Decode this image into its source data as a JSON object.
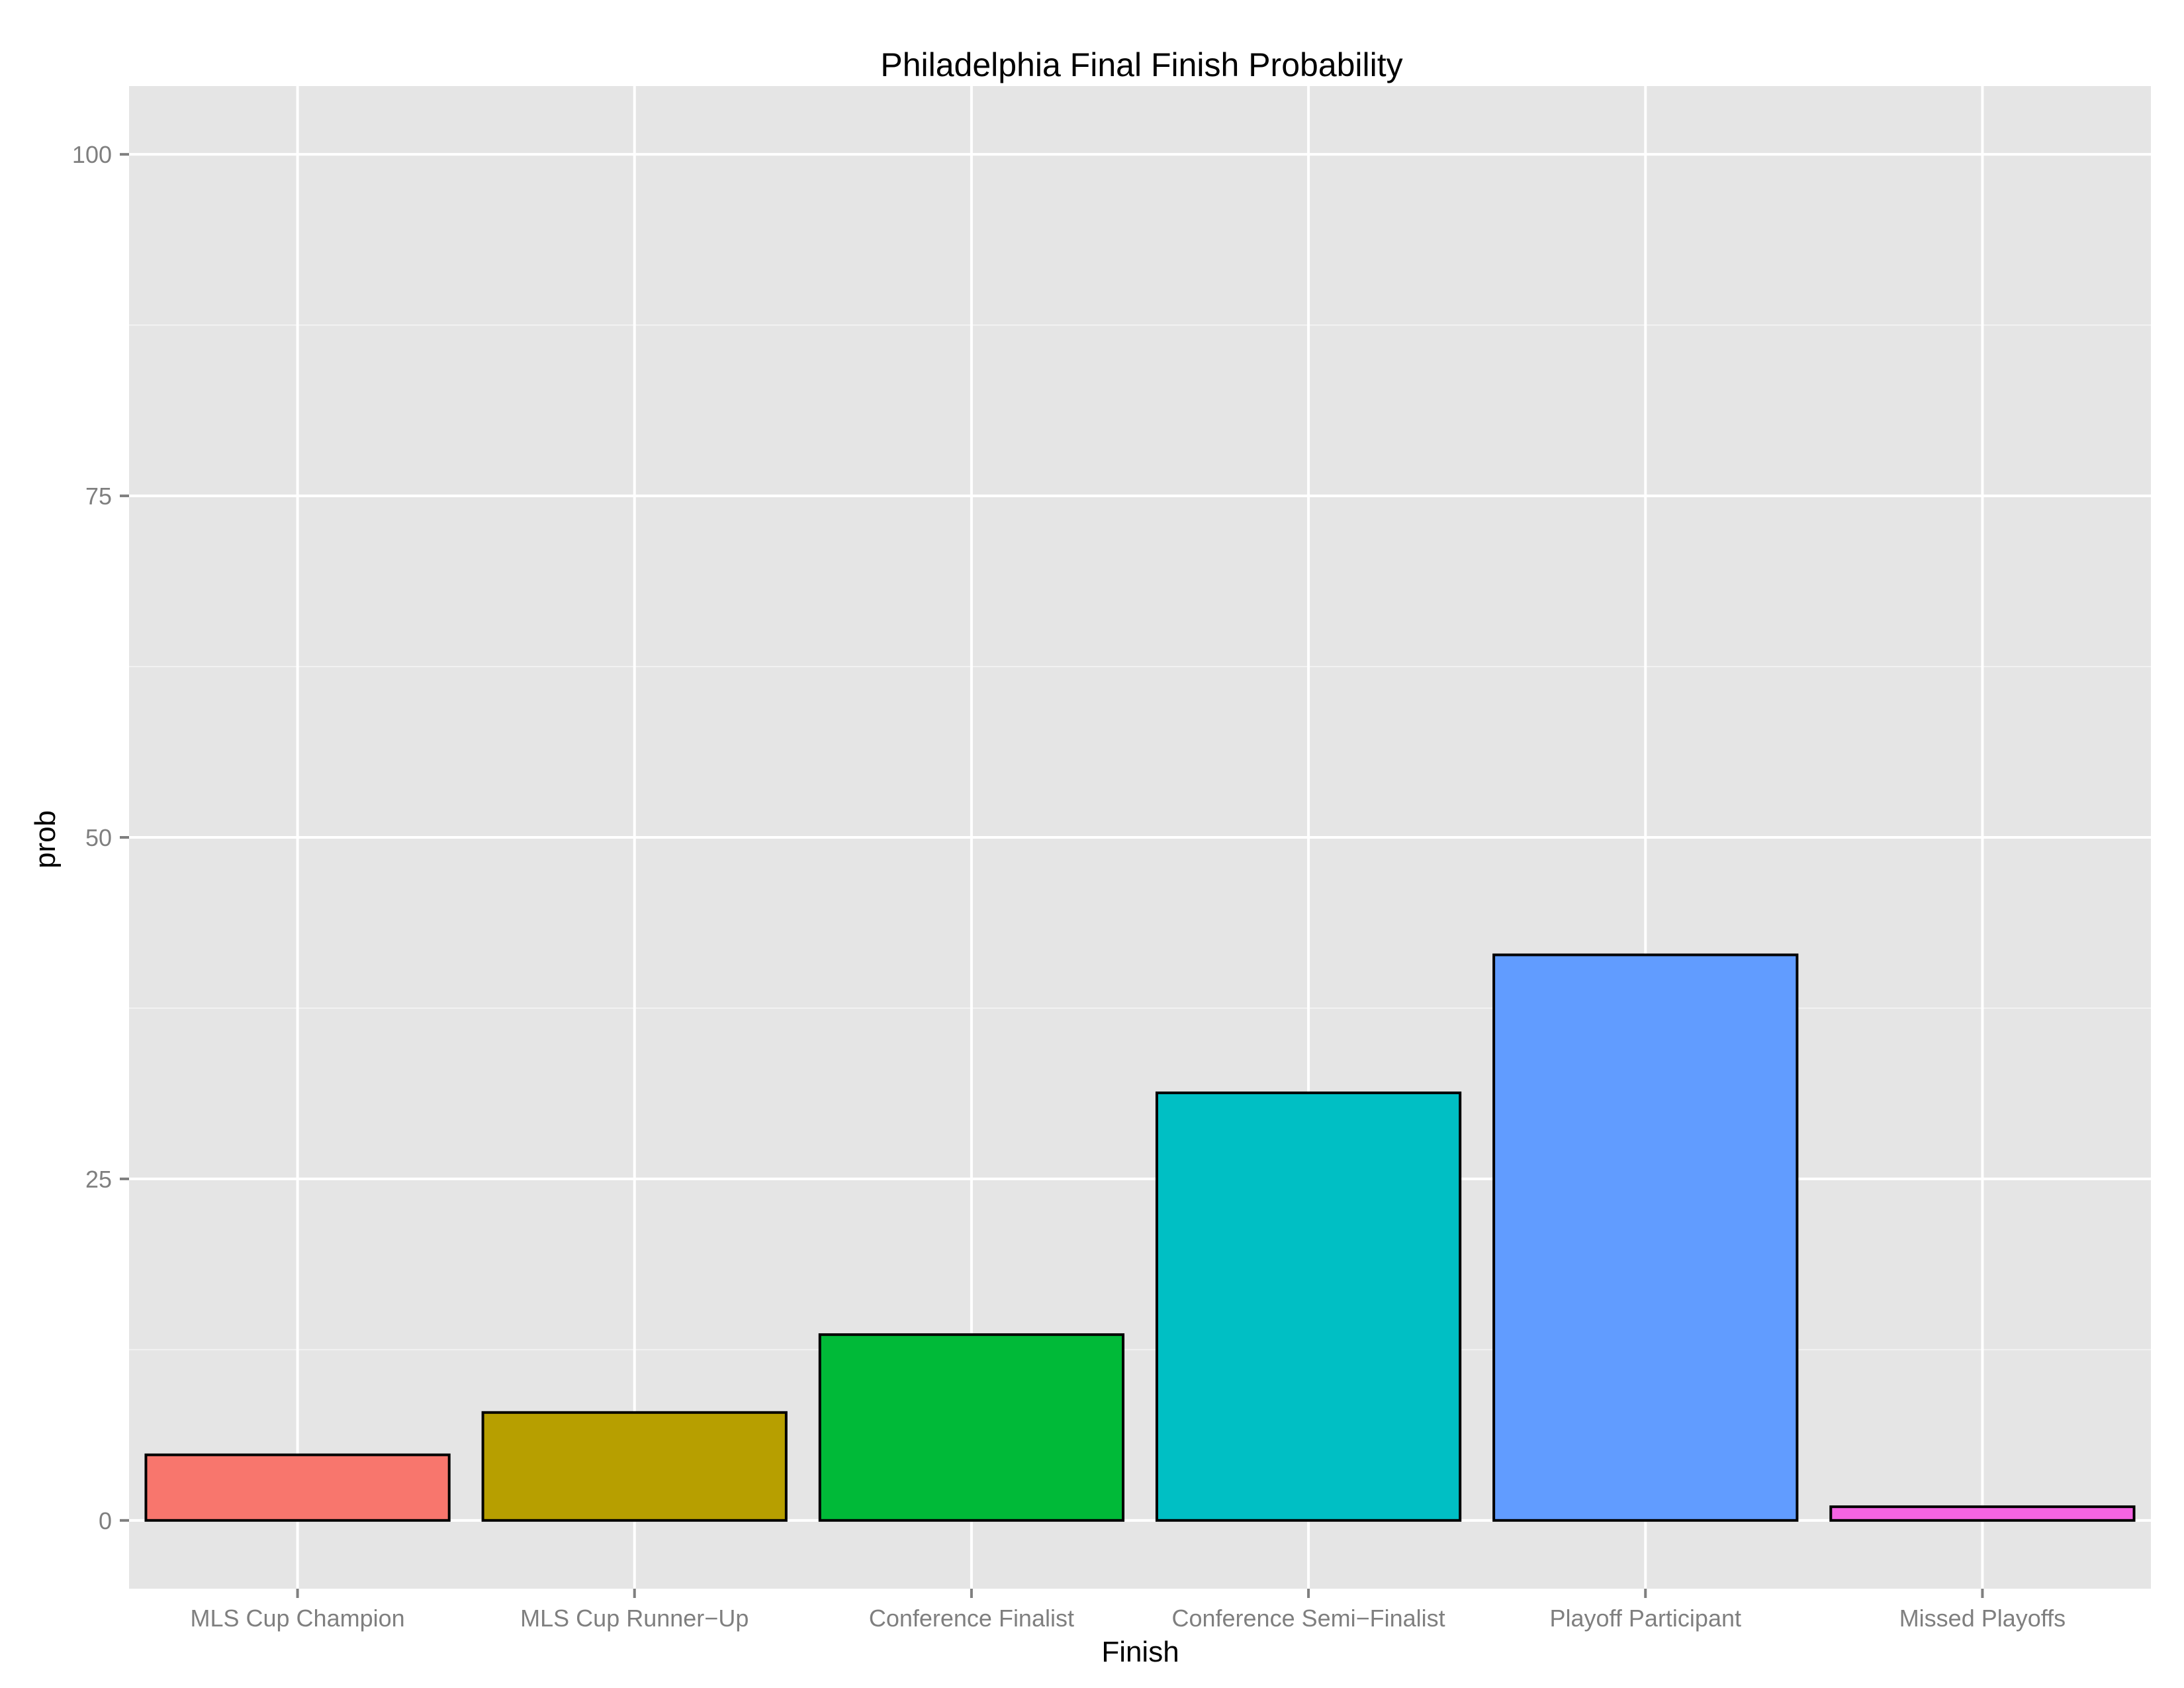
{
  "chart_data": {
    "type": "bar",
    "title": "Philadelphia Final Finish Probability",
    "xlabel": "Finish",
    "ylabel": "prob",
    "categories": [
      "MLS Cup Champion",
      "MLS Cup Runner−Up",
      "Conference Finalist",
      "Conference Semi−Finalist",
      "Playoff Participant",
      "Missed Playoffs"
    ],
    "values": [
      4.8,
      7.9,
      13.6,
      31.3,
      41.4,
      1.0
    ],
    "colors": [
      "#F8766D",
      "#B79F00",
      "#00BA38",
      "#00BFC4",
      "#619CFF",
      "#F564E3"
    ],
    "ylim": [
      -5,
      105
    ],
    "yticks": [
      0,
      25,
      50,
      75,
      100
    ],
    "ytick_labels": [
      "0",
      "25",
      "50",
      "75",
      "100"
    ],
    "grid": true,
    "background": "#E5E5E5",
    "legend": "none"
  }
}
